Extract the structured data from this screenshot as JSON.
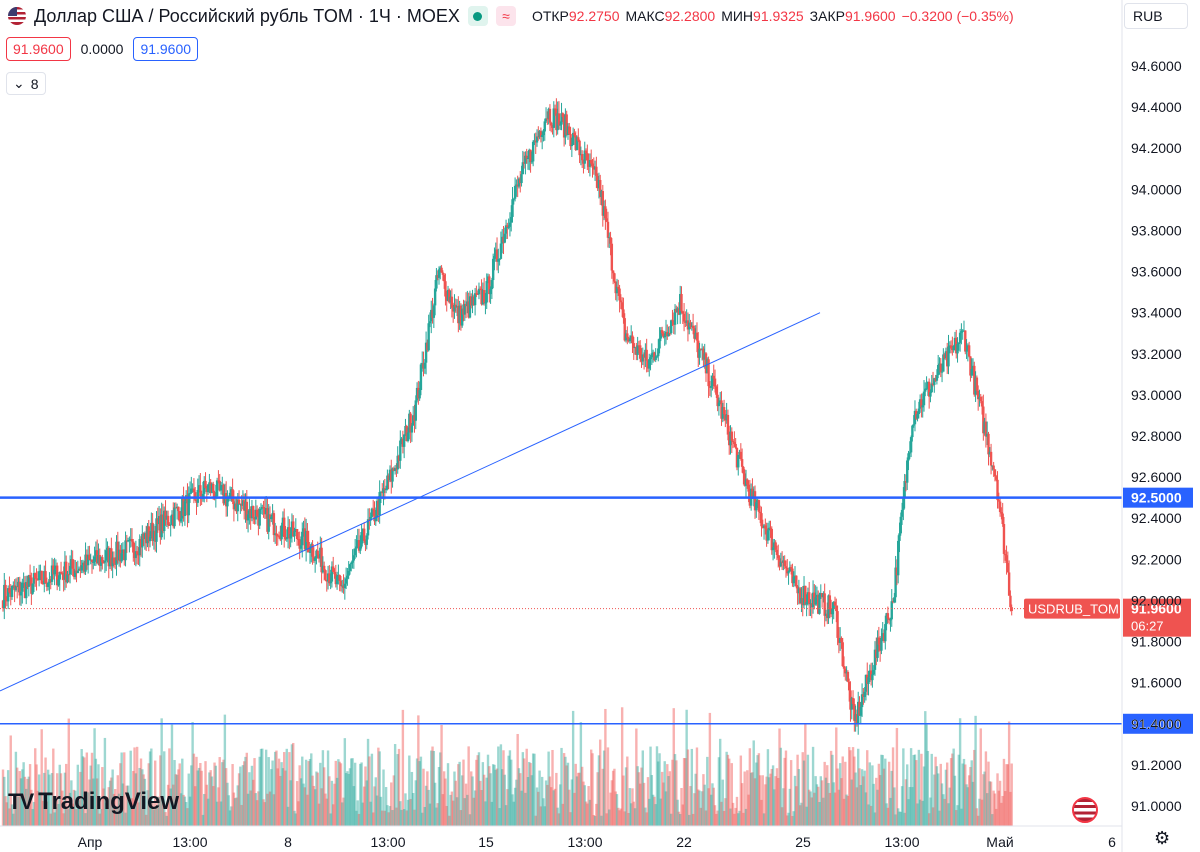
{
  "header": {
    "title": "Доллар США / Российский рубль TOM · 1Ч · MOEX",
    "ohlc": [
      {
        "label": "ОТКР",
        "value": "92.2750"
      },
      {
        "label": "МАКС",
        "value": "92.2800"
      },
      {
        "label": "МИН",
        "value": "91.9325"
      },
      {
        "label": "ЗАКР",
        "value": "91.9600"
      },
      {
        "label": "",
        "value": "−0.3200 (−0.35%)"
      }
    ]
  },
  "prices": {
    "bid": "91.9600",
    "spread": "0.0000",
    "ask": "91.9600"
  },
  "collapse": {
    "icon": "chevron-down-icon",
    "count": "8"
  },
  "currency": "RUB",
  "logo": "TradingView",
  "colors": {
    "up": "#26a69a",
    "down": "#ef5350",
    "line": "#2962ff"
  },
  "chart_data": {
    "type": "candlestick",
    "symbol_tag": "USDRUB_TOM",
    "last_price": "91.9600",
    "countdown": "06:27",
    "y_ticks": [
      "94.6000",
      "94.4000",
      "94.2000",
      "94.0000",
      "93.8000",
      "93.6000",
      "93.4000",
      "93.2000",
      "93.0000",
      "92.8000",
      "92.6000",
      "92.4000",
      "92.2000",
      "92.0000",
      "91.8000",
      "91.6000",
      "91.4000",
      "91.2000",
      "91.0000"
    ],
    "ylim": [
      90.92,
      94.75
    ],
    "x_ticks": [
      "Апр",
      "13:00",
      "8",
      "13:00",
      "15",
      "13:00",
      "22",
      "25",
      "13:00",
      "Май",
      "6"
    ],
    "hlines": [
      {
        "value": 92.5,
        "label": "92.5000"
      },
      {
        "value": 91.4,
        "label": "91.4000"
      }
    ],
    "trendline": {
      "from": 91.56,
      "to": 93.4
    },
    "segments": [
      [
        40,
        92.12
      ],
      [
        60,
        92.25
      ],
      [
        60,
        92.55
      ],
      [
        78,
        92.28
      ],
      [
        25,
        92.05
      ],
      [
        40,
        92.62
      ],
      [
        18,
        92.95
      ],
      [
        18,
        93.6
      ],
      [
        15,
        93.38
      ],
      [
        22,
        93.5
      ],
      [
        22,
        93.98
      ],
      [
        25,
        94.38
      ],
      [
        15,
        94.3
      ],
      [
        25,
        94.02
      ],
      [
        20,
        93.3
      ],
      [
        18,
        93.15
      ],
      [
        25,
        93.45
      ],
      [
        25,
        93.05
      ],
      [
        30,
        92.5
      ],
      [
        35,
        92.05
      ],
      [
        30,
        91.95
      ],
      [
        15,
        91.4
      ],
      [
        30,
        92.0
      ],
      [
        15,
        92.9
      ],
      [
        40,
        93.3
      ],
      [
        10,
        93.0
      ],
      [
        15,
        92.6
      ],
      [
        12,
        91.96
      ]
    ]
  }
}
